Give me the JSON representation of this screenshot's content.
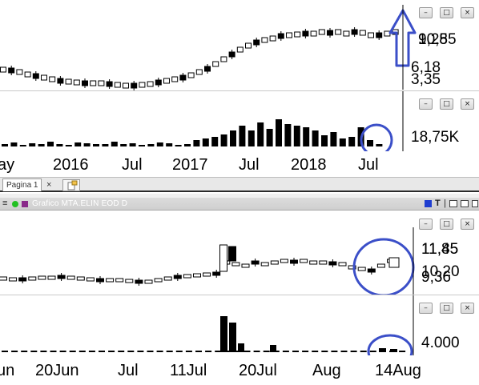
{
  "top_price_panel": {
    "price_labels": [
      "10,85",
      "9,25",
      "6,18",
      "3,35"
    ],
    "window_buttons": [
      "–",
      "□",
      "×"
    ]
  },
  "top_volume_panel": {
    "volume_label": "18,75K",
    "window_buttons": [
      "–",
      "□",
      "×"
    ]
  },
  "top_date_axis": {
    "labels": [
      "ay",
      "2016",
      "Jul",
      "2017",
      "Jul",
      "2018",
      "Jul"
    ]
  },
  "tab_bar": {
    "tab_label": "Pagina 1",
    "close_glyph": "×"
  },
  "chart_window": {
    "title": "Grafico MTA.ELIN EOD D",
    "menu_glyph": "≡",
    "status_color": "#22c022",
    "toolbar_glyphs": [
      "T",
      "|"
    ]
  },
  "bottom_price_panel": {
    "price_labels": [
      "11,85",
      "11,45",
      "10,20",
      "9,36"
    ],
    "window_buttons": [
      "–",
      "□",
      "×"
    ]
  },
  "bottom_volume_panel": {
    "volume_label": "4.000",
    "window_buttons": [
      "–",
      "□",
      "×"
    ]
  },
  "bottom_date_axis": {
    "labels": [
      "un",
      "20Jun",
      "Jul",
      "11Jul",
      "20Jul",
      "Aug",
      "14Aug"
    ]
  },
  "annotations": {
    "arrow_color": "#3b4fc8",
    "circle_color": "#3b4fc8"
  }
}
